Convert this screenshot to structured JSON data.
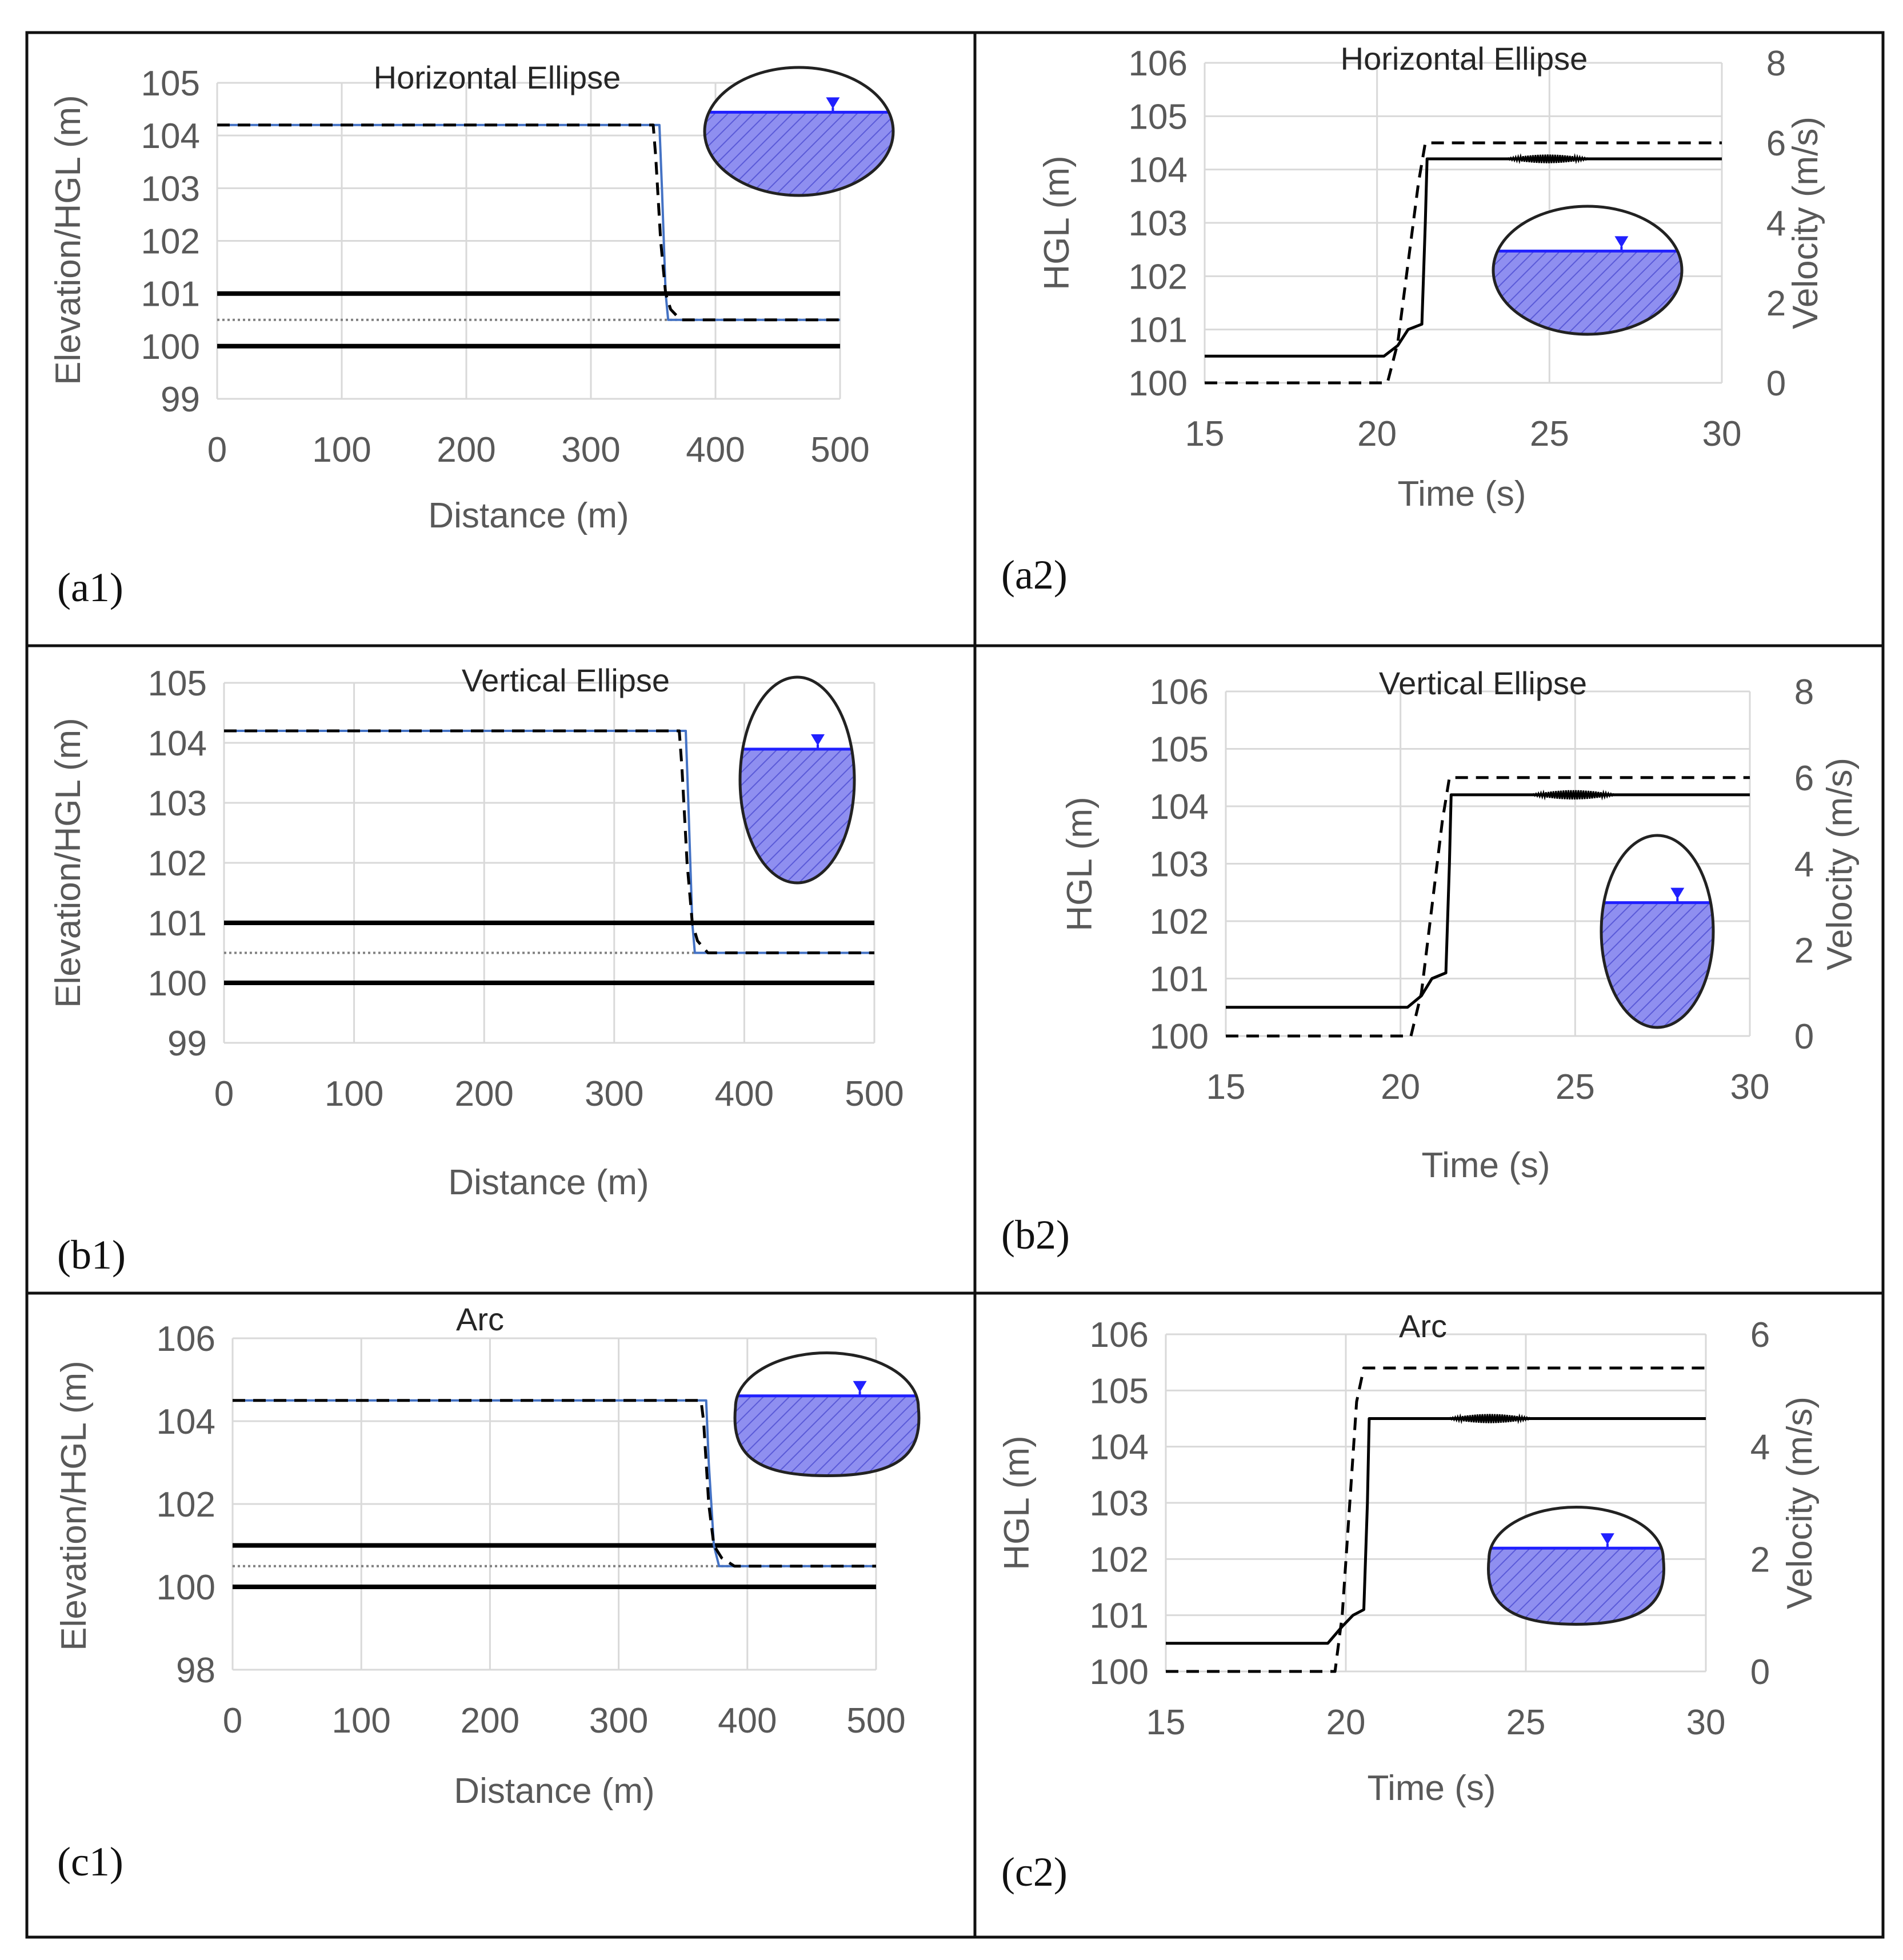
{
  "colors": {
    "grid": "#d9d9d9",
    "axis_text": "#595959",
    "hgl_line": "#4472c4",
    "black": "#000000",
    "water_fill": "#8f8ff0",
    "water_line": "#2020ff",
    "border": "#111111"
  },
  "chart_data": [
    {
      "id": "a1",
      "type": "line",
      "panel_label": "(a1)",
      "title": "Horizontal Ellipse",
      "xlabel": "Distance (m)",
      "ylabel": "Elevation/HGL (m)",
      "xlim": [
        0,
        500
      ],
      "ylim": [
        99,
        105
      ],
      "xticks": [
        0,
        100,
        200,
        300,
        400,
        500
      ],
      "yticks": [
        99,
        100,
        101,
        102,
        103,
        104,
        105
      ],
      "grid": true,
      "inset_shape": "horizontal-ellipse",
      "inset_water_fraction": 0.35,
      "series": [
        {
          "style": "blue",
          "x": [
            0,
            355,
            357,
            360,
            362,
            500
          ],
          "y": [
            104.2,
            104.2,
            103,
            101,
            100.5,
            100.5
          ]
        },
        {
          "style": "dashed",
          "x": [
            0,
            350,
            352,
            356,
            360,
            364,
            372,
            500
          ],
          "y": [
            104.2,
            104.2,
            103.6,
            102,
            101,
            100.7,
            100.5,
            100.5
          ]
        },
        {
          "style": "pipe",
          "x": [
            0,
            500
          ],
          "y": [
            101,
            101
          ]
        },
        {
          "style": "pipe",
          "x": [
            0,
            500
          ],
          "y": [
            100,
            100
          ]
        },
        {
          "style": "dotted",
          "x": [
            0,
            500
          ],
          "y": [
            100.5,
            100.5
          ]
        }
      ]
    },
    {
      "id": "a2",
      "type": "line",
      "panel_label": "(a2)",
      "title": "Horizontal Ellipse",
      "xlabel": "Time (s)",
      "ylabel": "HGL (m)",
      "y2label": "Velocity (m/s)",
      "xlim": [
        15,
        30
      ],
      "ylim": [
        100,
        106
      ],
      "y2lim": [
        0,
        8
      ],
      "xticks": [
        15,
        20,
        25,
        30
      ],
      "yticks": [
        100,
        101,
        102,
        103,
        104,
        105,
        106
      ],
      "y2ticks": [
        0,
        2,
        4,
        6,
        8
      ],
      "grid": true,
      "inset_shape": "horizontal-ellipse",
      "inset_water_fraction": 0.35,
      "series": [
        {
          "style": "solid",
          "axis": "y",
          "x": [
            15,
            20.2,
            20.6,
            20.9,
            21.3,
            21.4,
            21.45,
            30
          ],
          "y": [
            100.5,
            100.5,
            100.7,
            101,
            101.1,
            103,
            104.2,
            104.2
          ]
        },
        {
          "style": "dashed",
          "axis": "y2",
          "x": [
            15,
            20.3,
            20.6,
            21.2,
            21.4,
            30
          ],
          "y": [
            0,
            0,
            1,
            5,
            6,
            6
          ]
        }
      ],
      "oscillation": {
        "x0": 23.7,
        "x1": 26.2,
        "y": 104.2,
        "amp": 0.08
      }
    },
    {
      "id": "b1",
      "type": "line",
      "panel_label": "(b1)",
      "title": "Vertical Ellipse",
      "xlabel": "Distance (m)",
      "ylabel": "Elevation/HGL (m)",
      "xlim": [
        0,
        500
      ],
      "ylim": [
        99,
        105
      ],
      "xticks": [
        0,
        100,
        200,
        300,
        400,
        500
      ],
      "yticks": [
        99,
        100,
        101,
        102,
        103,
        104,
        105
      ],
      "grid": true,
      "inset_shape": "vertical-ellipse",
      "inset_water_fraction": 0.35,
      "series": [
        {
          "style": "blue",
          "x": [
            0,
            355,
            357,
            360,
            362,
            500
          ],
          "y": [
            104.2,
            104.2,
            103,
            101,
            100.5,
            100.5
          ]
        },
        {
          "style": "dashed",
          "x": [
            0,
            350,
            352,
            356,
            360,
            364,
            372,
            500
          ],
          "y": [
            104.2,
            104.2,
            103.6,
            102,
            101,
            100.7,
            100.5,
            100.5
          ]
        },
        {
          "style": "pipe",
          "x": [
            0,
            500
          ],
          "y": [
            101,
            101
          ]
        },
        {
          "style": "pipe",
          "x": [
            0,
            500
          ],
          "y": [
            100,
            100
          ]
        },
        {
          "style": "dotted",
          "x": [
            0,
            500
          ],
          "y": [
            100.5,
            100.5
          ]
        }
      ]
    },
    {
      "id": "b2",
      "type": "line",
      "panel_label": "(b2)",
      "title": "Vertical Ellipse",
      "xlabel": "Time (s)",
      "ylabel": "HGL (m)",
      "y2label": "Velocity (m/s)",
      "xlim": [
        15,
        30
      ],
      "ylim": [
        100,
        106
      ],
      "y2lim": [
        0,
        8
      ],
      "xticks": [
        15,
        20,
        25,
        30
      ],
      "yticks": [
        100,
        101,
        102,
        103,
        104,
        105,
        106
      ],
      "y2ticks": [
        0,
        2,
        4,
        6,
        8
      ],
      "grid": true,
      "inset_shape": "vertical-ellipse",
      "inset_water_fraction": 0.35,
      "series": [
        {
          "style": "solid",
          "axis": "y",
          "x": [
            15,
            20.2,
            20.6,
            20.9,
            21.3,
            21.4,
            21.45,
            30
          ],
          "y": [
            100.5,
            100.5,
            100.7,
            101,
            101.1,
            103,
            104.2,
            104.2
          ]
        },
        {
          "style": "dashed",
          "axis": "y2",
          "x": [
            15,
            20.3,
            20.6,
            21.2,
            21.4,
            30
          ],
          "y": [
            0,
            0,
            1,
            5,
            6,
            6
          ]
        }
      ],
      "oscillation": {
        "x0": 23.7,
        "x1": 26.2,
        "y": 104.2,
        "amp": 0.08
      }
    },
    {
      "id": "c1",
      "type": "line",
      "panel_label": "(c1)",
      "title": "Arc",
      "xlabel": "Distance (m)",
      "ylabel": "Elevation/HGL (m)",
      "xlim": [
        0,
        500
      ],
      "ylim": [
        98,
        106
      ],
      "xticks": [
        0,
        100,
        200,
        300,
        400,
        500
      ],
      "yticks": [
        98,
        100,
        102,
        104,
        106
      ],
      "grid": true,
      "inset_shape": "arc",
      "inset_water_fraction": 0.35,
      "series": [
        {
          "style": "blue",
          "x": [
            0,
            368,
            370,
            374,
            378,
            500
          ],
          "y": [
            104.5,
            104.5,
            103,
            101,
            100.5,
            100.5
          ]
        },
        {
          "style": "dashed",
          "x": [
            0,
            364,
            366,
            370,
            374,
            380,
            390,
            500
          ],
          "y": [
            104.5,
            104.5,
            104,
            102,
            101,
            100.7,
            100.5,
            100.5
          ]
        },
        {
          "style": "pipe",
          "x": [
            0,
            500
          ],
          "y": [
            101,
            101
          ]
        },
        {
          "style": "pipe",
          "x": [
            0,
            500
          ],
          "y": [
            100,
            100
          ]
        },
        {
          "style": "dotted",
          "x": [
            0,
            500
          ],
          "y": [
            100.5,
            100.5
          ]
        }
      ]
    },
    {
      "id": "c2",
      "type": "line",
      "panel_label": "(c2)",
      "title": "Arc",
      "xlabel": "Time (s)",
      "ylabel": "HGL (m)",
      "y2label": "Velocity (m/s)",
      "xlim": [
        15,
        30
      ],
      "ylim": [
        100,
        106
      ],
      "y2lim": [
        0,
        6
      ],
      "xticks": [
        15,
        20,
        25,
        30
      ],
      "yticks": [
        100,
        101,
        102,
        103,
        104,
        105,
        106
      ],
      "y2ticks": [
        0,
        2,
        4,
        6
      ],
      "grid": true,
      "inset_shape": "arc",
      "inset_water_fraction": 0.35,
      "series": [
        {
          "style": "solid",
          "axis": "y",
          "x": [
            15,
            19.5,
            19.9,
            20.2,
            20.5,
            20.6,
            20.65,
            30
          ],
          "y": [
            100.5,
            100.5,
            100.8,
            101,
            101.1,
            103,
            104.5,
            104.5
          ]
        },
        {
          "style": "dashed",
          "axis": "y2",
          "x": [
            15,
            19.7,
            19.9,
            20.3,
            20.5,
            30
          ],
          "y": [
            0,
            0,
            1,
            4.8,
            5.4,
            5.4
          ]
        }
      ],
      "oscillation": {
        "x0": 22.8,
        "x1": 25.2,
        "y": 104.5,
        "amp": 0.08
      }
    }
  ]
}
